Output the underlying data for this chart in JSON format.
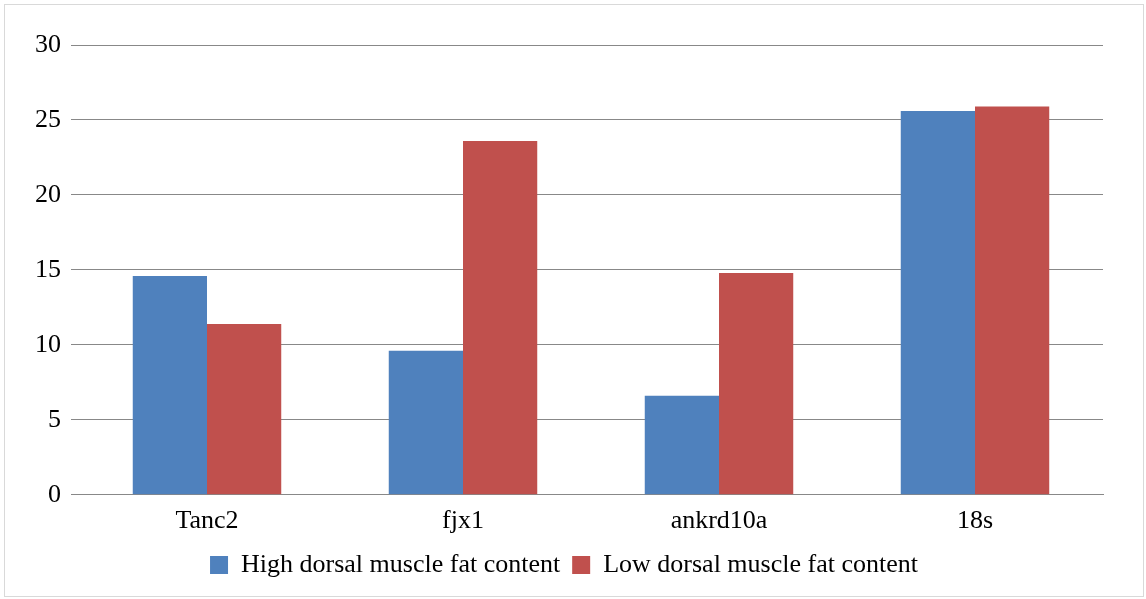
{
  "chart_data": {
    "type": "bar",
    "categories": [
      "Tanc2",
      "fjx1",
      "ankrd10a",
      "18s"
    ],
    "series": [
      {
        "name": "High dorsal muscle fat content",
        "color": "#4f81bd",
        "values": [
          14.6,
          9.6,
          6.6,
          25.6
        ]
      },
      {
        "name": "Low dorsal muscle fat content",
        "color": "#c0504d",
        "values": [
          11.4,
          23.6,
          14.8,
          25.9
        ]
      }
    ],
    "ylim": [
      0,
      30
    ],
    "yticks": [
      0,
      5,
      10,
      15,
      20,
      25,
      30
    ],
    "grid": "y",
    "legend": "bottom"
  }
}
